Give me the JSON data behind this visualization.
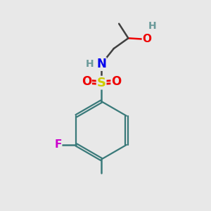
{
  "bg_color": "#e8e8e8",
  "atom_colors": {
    "C": "#3a7a7a",
    "H": "#6a9a9a",
    "N": "#0000ee",
    "O": "#ee0000",
    "S": "#cccc00",
    "F": "#cc00cc"
  },
  "bond_color": "#3a7a7a",
  "bond_color_upper": "#404040",
  "sulfonyl_bond_color": "#404040"
}
